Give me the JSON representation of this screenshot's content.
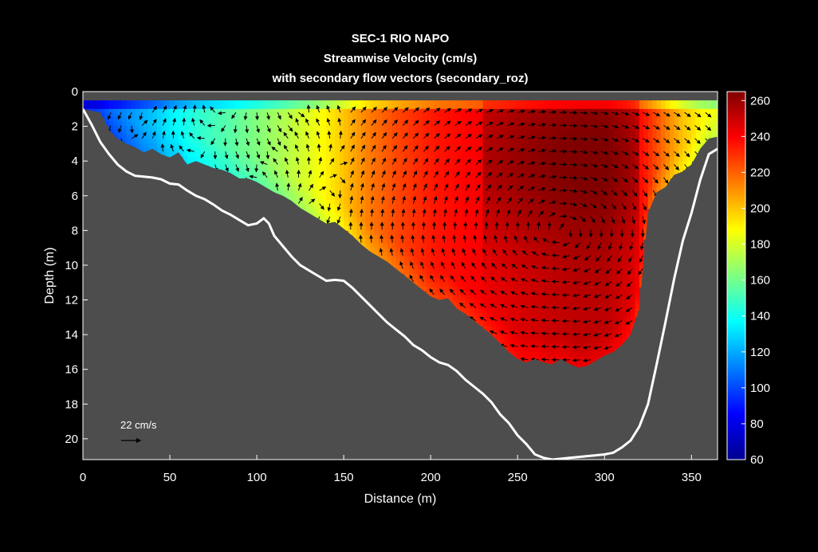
{
  "chart_data": {
    "type": "heatmap",
    "title": [
      "SEC-1 RIO NAPO",
      "Streamwise Velocity (cm/s)",
      "with secondary flow vectors (secondary_roz)"
    ],
    "xlabel": "Distance (m)",
    "ylabel": "Depth (m)",
    "xlim": [
      0,
      365
    ],
    "ylim": [
      0,
      21.2
    ],
    "y_reversed": true,
    "xticks": [
      0,
      50,
      100,
      150,
      200,
      250,
      300,
      350
    ],
    "yticks": [
      0,
      2,
      4,
      6,
      8,
      10,
      12,
      14,
      16,
      18,
      20
    ],
    "colorbar": {
      "colormap": "jet",
      "range": [
        60,
        265
      ],
      "ticks": [
        60,
        80,
        100,
        120,
        140,
        160,
        180,
        200,
        220,
        240,
        260
      ]
    },
    "background_color": "#4d4d4d",
    "bed_line_color": "#ffffff",
    "vector_scale_label": "22 cm/s",
    "bed_profile": {
      "x": [
        0,
        5,
        10,
        15,
        20,
        25,
        30,
        35,
        40,
        45,
        50,
        55,
        60,
        65,
        70,
        75,
        80,
        85,
        90,
        95,
        100,
        104,
        107,
        110,
        115,
        120,
        125,
        130,
        135,
        140,
        145,
        150,
        155,
        160,
        165,
        170,
        175,
        180,
        185,
        190,
        195,
        200,
        205,
        210,
        215,
        220,
        225,
        230,
        235,
        240,
        245,
        250,
        255,
        260,
        265,
        270,
        275,
        280,
        285,
        290,
        295,
        300,
        305,
        310,
        315,
        320,
        325,
        330,
        335,
        340,
        345,
        350,
        355,
        360,
        365
      ],
      "depth": [
        1.0,
        1.9,
        2.9,
        3.6,
        4.2,
        4.6,
        4.85,
        4.9,
        4.95,
        5.05,
        5.3,
        5.35,
        5.7,
        6.0,
        6.2,
        6.5,
        6.85,
        7.1,
        7.4,
        7.7,
        7.6,
        7.3,
        7.6,
        8.3,
        8.9,
        9.5,
        10.0,
        10.3,
        10.6,
        10.9,
        10.85,
        10.9,
        11.3,
        11.8,
        12.3,
        12.8,
        13.3,
        13.7,
        14.1,
        14.6,
        14.9,
        15.3,
        15.6,
        15.75,
        16.1,
        16.6,
        17.0,
        17.4,
        17.9,
        18.6,
        19.1,
        19.8,
        20.3,
        20.9,
        21.1,
        21.2,
        21.15,
        21.1,
        21.05,
        21.0,
        20.95,
        20.9,
        20.8,
        20.5,
        20.1,
        19.3,
        18.0,
        15.7,
        13.3,
        10.8,
        8.6,
        7.0,
        5.1,
        3.6,
        3.3
      ]
    },
    "measured_bottom": {
      "x": [
        0,
        10,
        15,
        20,
        25,
        30,
        35,
        40,
        45,
        50,
        55,
        60,
        65,
        70,
        75,
        80,
        85,
        90,
        95,
        100,
        105,
        110,
        115,
        120,
        125,
        130,
        135,
        140,
        145,
        150,
        155,
        160,
        165,
        170,
        175,
        180,
        185,
        190,
        195,
        200,
        205,
        210,
        215,
        220,
        225,
        230,
        235,
        240,
        245,
        250,
        255,
        260,
        265,
        270,
        275,
        280,
        285,
        290,
        295,
        300,
        305,
        310,
        315,
        320,
        325,
        330,
        335,
        340,
        345,
        350,
        355,
        360,
        365
      ],
      "depth": [
        1.0,
        1.2,
        2.2,
        2.7,
        3.0,
        3.2,
        3.5,
        3.3,
        3.6,
        3.8,
        3.5,
        4.2,
        4.0,
        4.2,
        4.4,
        4.5,
        4.7,
        5.0,
        5.0,
        5.2,
        5.5,
        5.8,
        6.0,
        6.3,
        6.7,
        7.0,
        7.3,
        7.6,
        7.5,
        7.9,
        8.3,
        8.8,
        9.2,
        9.5,
        9.8,
        10.2,
        10.6,
        11.0,
        11.4,
        11.8,
        12.0,
        11.9,
        12.5,
        12.8,
        13.2,
        13.6,
        14.0,
        14.5,
        15.0,
        15.4,
        15.6,
        15.4,
        15.6,
        15.7,
        15.4,
        15.7,
        15.9,
        15.8,
        15.5,
        15.2,
        15.0,
        14.6,
        14.0,
        12.5,
        7.0,
        5.8,
        5.5,
        4.8,
        4.6,
        4.2,
        3.3,
        2.7,
        2.6
      ]
    },
    "velocity_profile": {
      "x": [
        0,
        20,
        40,
        55,
        70,
        85,
        100,
        115,
        130,
        140,
        150,
        165,
        180,
        195,
        205,
        215,
        230,
        240,
        250,
        260,
        270,
        285,
        300,
        315,
        325,
        335,
        345,
        355,
        365
      ],
      "value": [
        105,
        110,
        125,
        138,
        148,
        155,
        163,
        172,
        182,
        190,
        200,
        215,
        225,
        232,
        236,
        238,
        241,
        243,
        246,
        248,
        250,
        252,
        252,
        245,
        232,
        215,
        200,
        190,
        185
      ]
    }
  }
}
